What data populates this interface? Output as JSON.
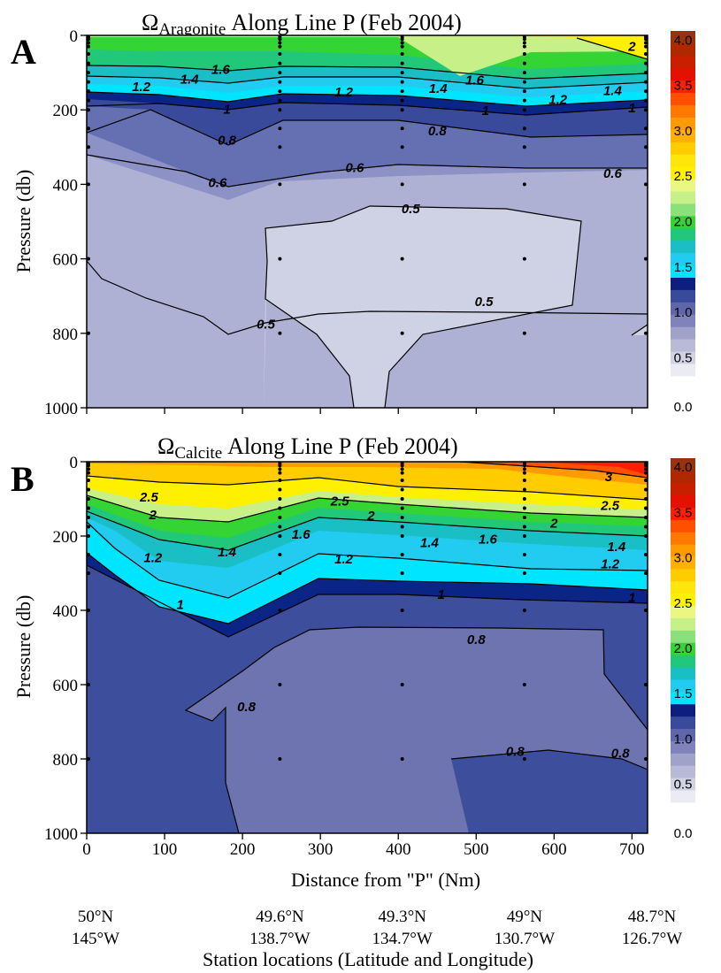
{
  "chart_data": [
    {
      "type": "contour",
      "panel": "A",
      "title_symbol": "Ω",
      "title_subscript": "Aragonite",
      "title_rest": "Along Line P (Feb 2004)",
      "xlabel": "",
      "ylabel": "Pressure (db)",
      "xlim": [
        0,
        720
      ],
      "ylim": [
        0,
        1000
      ],
      "y_inverted": true,
      "x_ticks": [
        0,
        100,
        200,
        300,
        400,
        500,
        600,
        700
      ],
      "x_tick_labels_shown": false,
      "y_ticks": [
        0,
        200,
        400,
        600,
        800,
        1000
      ],
      "colorbar": {
        "min": 0.3,
        "max": 4.1,
        "tick_values": [
          0.0,
          0.5,
          1.0,
          1.5,
          2.0,
          2.5,
          3.0,
          3.5,
          4.0
        ],
        "tick_labels": [
          "0.0",
          "0.5",
          "1.0",
          "1.5",
          "2.0",
          "2.5",
          "3.0",
          "3.5",
          "4.0"
        ]
      },
      "sample_profiles_x": [
        0,
        248,
        405,
        562,
        720
      ],
      "sample_depths": [
        0,
        10,
        20,
        30,
        50,
        75,
        100,
        125,
        150,
        175,
        200,
        250,
        300,
        400,
        600,
        800
      ],
      "contour_labels": [
        {
          "value": "0.5",
          "x": 230,
          "y": 775
        },
        {
          "value": "0.5",
          "x": 510,
          "y": 715
        },
        {
          "value": "0.5",
          "x": 416,
          "y": 465
        },
        {
          "value": "0.6",
          "x": 168,
          "y": 395
        },
        {
          "value": "0.6",
          "x": 344,
          "y": 355
        },
        {
          "value": "0.6",
          "x": 675,
          "y": 370
        },
        {
          "value": "0.8",
          "x": 180,
          "y": 282
        },
        {
          "value": "0.8",
          "x": 450,
          "y": 256
        },
        {
          "value": "1",
          "x": 180,
          "y": 198
        },
        {
          "value": "1",
          "x": 512,
          "y": 202
        },
        {
          "value": "1",
          "x": 700,
          "y": 195
        },
        {
          "value": "1.2",
          "x": 70,
          "y": 138
        },
        {
          "value": "1.2",
          "x": 330,
          "y": 152
        },
        {
          "value": "1.2",
          "x": 605,
          "y": 172
        },
        {
          "value": "1.4",
          "x": 132,
          "y": 118
        },
        {
          "value": "1.4",
          "x": 451,
          "y": 143
        },
        {
          "value": "1.4",
          "x": 675,
          "y": 148
        },
        {
          "value": "1.6",
          "x": 172,
          "y": 92
        },
        {
          "value": "1.6",
          "x": 498,
          "y": 120
        },
        {
          "value": "2",
          "x": 700,
          "y": 30
        }
      ]
    },
    {
      "type": "contour",
      "panel": "B",
      "title_symbol": "Ω",
      "title_subscript": "Calcite",
      "title_rest": "Along Line P (Feb 2004)",
      "xlabel": "Distance from \"P\" (Nm)",
      "ylabel": "Pressure (db)",
      "xlim": [
        0,
        720
      ],
      "ylim": [
        0,
        1000
      ],
      "y_inverted": true,
      "x_ticks": [
        0,
        100,
        200,
        300,
        400,
        500,
        600,
        700
      ],
      "x_tick_labels": [
        "0",
        "100",
        "200",
        "300",
        "400",
        "500",
        "600",
        "700"
      ],
      "y_ticks": [
        0,
        200,
        400,
        600,
        800,
        1000
      ],
      "colorbar": {
        "min": 0.3,
        "max": 4.1,
        "tick_values": [
          0.0,
          0.5,
          1.0,
          1.5,
          2.0,
          2.5,
          3.0,
          3.5,
          4.0
        ],
        "tick_labels": [
          "0.0",
          "0.5",
          "1.0",
          "1.5",
          "2.0",
          "2.5",
          "3.0",
          "3.5",
          "4.0"
        ]
      },
      "sample_profiles_x": [
        0,
        248,
        405,
        562,
        720
      ],
      "sample_depths": [
        0,
        10,
        20,
        30,
        50,
        75,
        100,
        125,
        150,
        175,
        200,
        250,
        300,
        400,
        600,
        800
      ],
      "contour_labels": [
        {
          "value": "0.8",
          "x": 205,
          "y": 660
        },
        {
          "value": "0.8",
          "x": 550,
          "y": 780
        },
        {
          "value": "0.8",
          "x": 685,
          "y": 785
        },
        {
          "value": "0.8",
          "x": 500,
          "y": 478
        },
        {
          "value": "1",
          "x": 120,
          "y": 385
        },
        {
          "value": "1",
          "x": 455,
          "y": 357
        },
        {
          "value": "1",
          "x": 700,
          "y": 365
        },
        {
          "value": "1.2",
          "x": 85,
          "y": 258
        },
        {
          "value": "1.2",
          "x": 330,
          "y": 262
        },
        {
          "value": "1.2",
          "x": 672,
          "y": 275
        },
        {
          "value": "1.4",
          "x": 180,
          "y": 243
        },
        {
          "value": "1.4",
          "x": 440,
          "y": 218
        },
        {
          "value": "1.4",
          "x": 680,
          "y": 228
        },
        {
          "value": "1.6",
          "x": 275,
          "y": 195
        },
        {
          "value": "1.6",
          "x": 515,
          "y": 208
        },
        {
          "value": "2",
          "x": 85,
          "y": 143
        },
        {
          "value": "2",
          "x": 365,
          "y": 145
        },
        {
          "value": "2",
          "x": 600,
          "y": 165
        },
        {
          "value": "2.5",
          "x": 80,
          "y": 95
        },
        {
          "value": "2.5",
          "x": 325,
          "y": 106
        },
        {
          "value": "2.5",
          "x": 672,
          "y": 118
        },
        {
          "value": "3",
          "x": 670,
          "y": 40
        }
      ]
    }
  ],
  "stations": [
    {
      "x": 0,
      "lat": "50°N",
      "lon": "145°W"
    },
    {
      "x": 248,
      "lat": "49.6°N",
      "lon": "138.7°W"
    },
    {
      "x": 405,
      "lat": "49.3°N",
      "lon": "134.7°W"
    },
    {
      "x": 562,
      "lat": "49°N",
      "lon": "130.7°W"
    },
    {
      "x": 720,
      "lat": "48.7°N",
      "lon": "126.7°W"
    }
  ],
  "stations_label": "Station locations (Latitude and Longitude)",
  "colormap": [
    "#ebebf3",
    "#d2d2e5",
    "#b9bad7",
    "#a0a2c9",
    "#7f83b9",
    "#5f66aa",
    "#3a4a9a",
    "#0e1e7e",
    "#00e5ff",
    "#22ccf0",
    "#19bfc4",
    "#22c87a",
    "#33d433",
    "#8ae07a",
    "#c8f089",
    "#eaf783",
    "#fff000",
    "#ffe60a",
    "#ffcc00",
    "#ffb000",
    "#ff9a00",
    "#ff7800",
    "#ff5000",
    "#ff1e00",
    "#e41000",
    "#c81f00",
    "#b02800",
    "#9a3210"
  ],
  "colors": {
    "A": {
      "l1": "#cfd1e5",
      "l2": "#aeb1d4",
      "l3": "#8c92c6",
      "l4": "#6470b2",
      "l5": "#3a4a9a",
      "l6": "#0b2586",
      "l7": "#00e5ff",
      "l8": "#22ccf0",
      "l9": "#19bfc4",
      "l10": "#22c87a",
      "l11": "#33d433",
      "l12": "#c8f089",
      "l13": "#fff000"
    },
    "B": {
      "l1": "#6d74b0",
      "l2": "#3d4e9c",
      "l3": "#0b2586",
      "l4": "#00e5ff",
      "l5": "#22ccf0",
      "l6": "#19bfc4",
      "l7": "#22c87a",
      "l8": "#33d433",
      "l9": "#c8f089",
      "l10": "#fff000",
      "l11": "#ffcc00",
      "l12": "#ff9a00",
      "l13": "#ff5000",
      "l14": "#ff1e00"
    }
  }
}
